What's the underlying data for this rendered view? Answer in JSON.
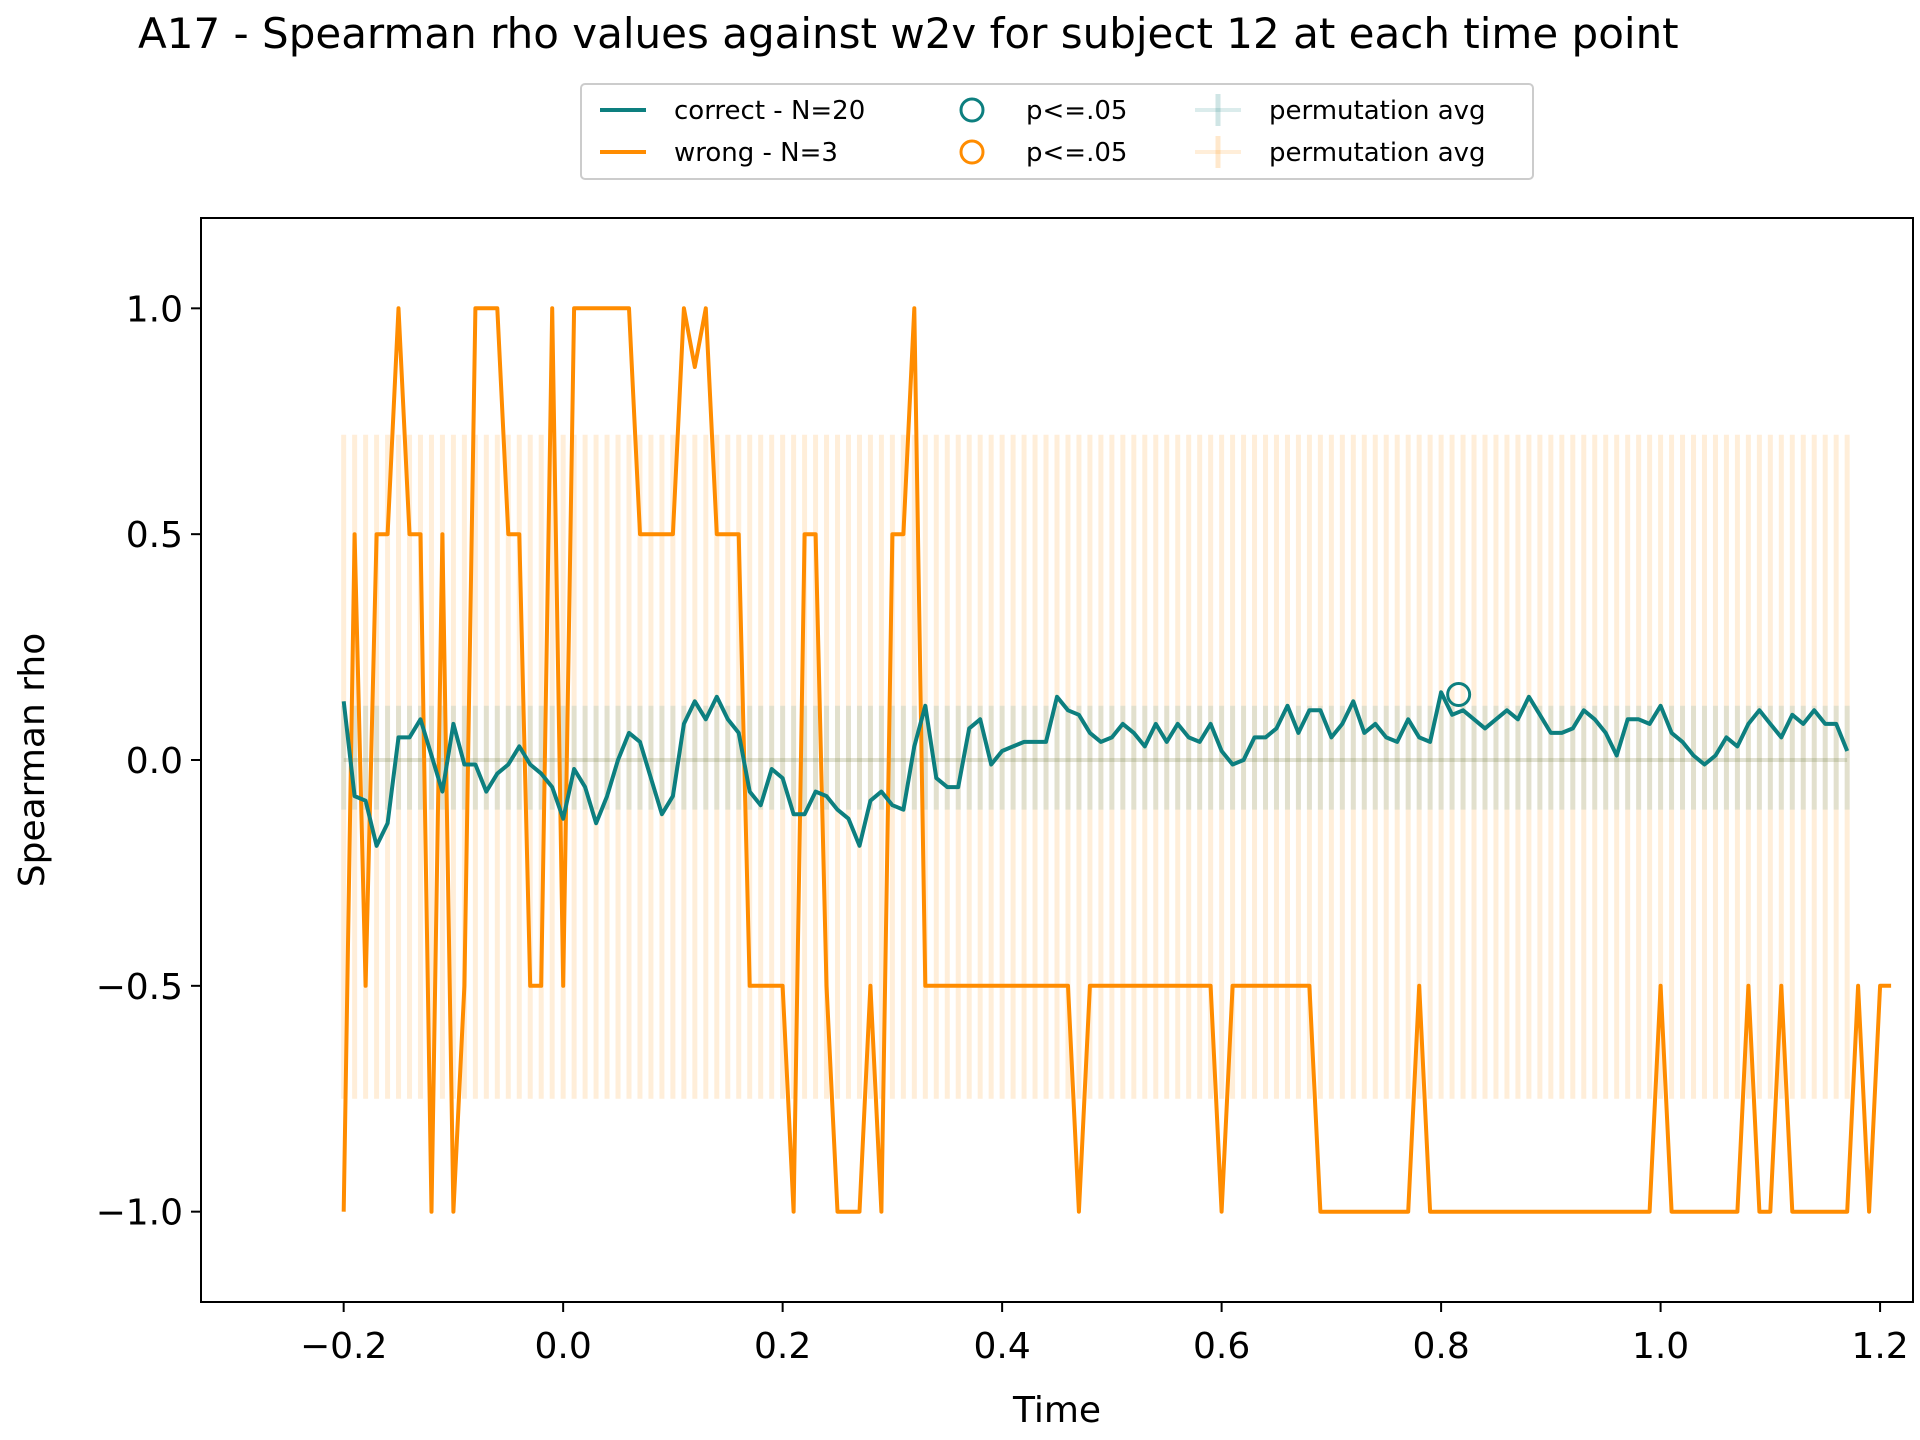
{
  "chart_data": {
    "type": "line",
    "title": "A17 - Spearman rho values against w2v for subject 12 at each time point",
    "xlabel": "Time",
    "ylabel": "Spearman rho",
    "xlim": [
      -0.33,
      1.23
    ],
    "ylim": [
      -1.2,
      1.2
    ],
    "xticks": [
      -0.2,
      0.0,
      0.2,
      0.4,
      0.6,
      0.8,
      1.0,
      1.2
    ],
    "xtick_labels": [
      "−0.2",
      "0.0",
      "0.2",
      "0.4",
      "0.6",
      "0.8",
      "1.0",
      "1.2"
    ],
    "yticks": [
      1.0,
      0.5,
      0.0,
      -0.5,
      -1.0
    ],
    "ytick_labels": [
      "1.0",
      "0.5",
      "0.0",
      "−0.5",
      "−1.0"
    ],
    "grid": false,
    "legend_placement": "top-center",
    "legend": [
      {
        "label": "correct - N=20",
        "kind": "line",
        "color": "#0d7f7f"
      },
      {
        "label": "wrong - N=3",
        "kind": "line",
        "color": "#ff8c00"
      },
      {
        "label": "p<=.05",
        "kind": "marker",
        "color": "#0d7f7f"
      },
      {
        "label": "p<=.05",
        "kind": "marker",
        "color": "#ff8c00"
      },
      {
        "label": "permutation avg",
        "kind": "errorbar",
        "color": "#0d7f7f"
      },
      {
        "label": "permutation avg",
        "kind": "errorbar",
        "color": "#ff8c00"
      }
    ],
    "x_start": -0.2,
    "x_step": 0.01,
    "series": [
      {
        "name": "correct - N=20",
        "color": "#0d7f7f",
        "values": [
          0.13,
          -0.08,
          -0.09,
          -0.19,
          -0.14,
          0.05,
          0.05,
          0.09,
          0.01,
          -0.07,
          0.08,
          -0.01,
          -0.01,
          -0.07,
          -0.03,
          -0.01,
          0.03,
          -0.01,
          -0.03,
          -0.06,
          -0.13,
          -0.02,
          -0.06,
          -0.14,
          -0.08,
          0.0,
          0.06,
          0.04,
          -0.04,
          -0.12,
          -0.08,
          0.08,
          0.13,
          0.09,
          0.14,
          0.09,
          0.06,
          -0.07,
          -0.1,
          -0.02,
          -0.04,
          -0.12,
          -0.12,
          -0.07,
          -0.08,
          -0.11,
          -0.13,
          -0.19,
          -0.09,
          -0.07,
          -0.1,
          -0.11,
          0.03,
          0.12,
          -0.04,
          -0.06,
          -0.06,
          0.07,
          0.09,
          -0.01,
          0.02,
          0.03,
          0.04,
          0.04,
          0.04,
          0.14,
          0.11,
          0.1,
          0.06,
          0.04,
          0.05,
          0.08,
          0.06,
          0.03,
          0.08,
          0.04,
          0.08,
          0.05,
          0.04,
          0.08,
          0.02,
          -0.01,
          0.0,
          0.05,
          0.05,
          0.07,
          0.12,
          0.06,
          0.11,
          0.11,
          0.05,
          0.08,
          0.13,
          0.06,
          0.08,
          0.05,
          0.04,
          0.09,
          0.05,
          0.04,
          0.15,
          0.1,
          0.11,
          0.09,
          0.07,
          0.09,
          0.11,
          0.09,
          0.14,
          0.1,
          0.06,
          0.06,
          0.07,
          0.11,
          0.09,
          0.06,
          0.01,
          0.09,
          0.09,
          0.08,
          0.12,
          0.06,
          0.04,
          0.01,
          -0.01,
          0.01,
          0.05,
          0.03,
          0.08,
          0.11,
          0.08,
          0.05,
          0.1,
          0.08,
          0.11,
          0.08,
          0.08,
          0.02
        ],
        "significant": [
          {
            "x": 0.816,
            "y": 0.145
          }
        ]
      },
      {
        "name": "wrong - N=3",
        "color": "#ff8c00",
        "values": [
          -1.0,
          0.5,
          -0.5,
          0.5,
          0.5,
          1.0,
          0.5,
          0.5,
          -1.0,
          0.5,
          -1.0,
          -0.5,
          1.0,
          1.0,
          1.0,
          0.5,
          0.5,
          -0.5,
          -0.5,
          1.0,
          -0.5,
          1.0,
          1.0,
          1.0,
          1.0,
          1.0,
          1.0,
          0.5,
          0.5,
          0.5,
          0.5,
          1.0,
          0.87,
          1.0,
          0.5,
          0.5,
          0.5,
          -0.5,
          -0.5,
          -0.5,
          -0.5,
          -1.0,
          0.5,
          0.5,
          -0.5,
          -1.0,
          -1.0,
          -1.0,
          -0.5,
          -1.0,
          0.5,
          0.5,
          1.0,
          -0.5,
          -0.5,
          -0.5,
          -0.5,
          -0.5,
          -0.5,
          -0.5,
          -0.5,
          -0.5,
          -0.5,
          -0.5,
          -0.5,
          -0.5,
          -0.5,
          -1.0,
          -0.5,
          -0.5,
          -0.5,
          -0.5,
          -0.5,
          -0.5,
          -0.5,
          -0.5,
          -0.5,
          -0.5,
          -0.5,
          -0.5,
          -1.0,
          -0.5,
          -0.5,
          -0.5,
          -0.5,
          -0.5,
          -0.5,
          -0.5,
          -0.5,
          -1.0,
          -1.0,
          -1.0,
          -1.0,
          -1.0,
          -1.0,
          -1.0,
          -1.0,
          -1.0,
          -0.5,
          -1.0,
          -1.0,
          -1.0,
          -1.0,
          -1.0,
          -1.0,
          -1.0,
          -1.0,
          -1.0,
          -1.0,
          -1.0,
          -1.0,
          -1.0,
          -1.0,
          -1.0,
          -1.0,
          -1.0,
          -1.0,
          -1.0,
          -1.0,
          -1.0,
          -0.5,
          -1.0,
          -1.0,
          -1.0,
          -1.0,
          -1.0,
          -1.0,
          -1.0,
          -0.5,
          -1.0,
          -1.0,
          -0.5,
          -1.0,
          -1.0,
          -1.0,
          -1.0,
          -1.0,
          -1.0,
          -0.5,
          -1.0,
          -0.5,
          -0.5
        ],
        "significant": []
      }
    ],
    "permutation": [
      {
        "name": "permutation avg",
        "color": "#0d7f7f",
        "center": 0.0,
        "low": -0.11,
        "high": 0.12
      },
      {
        "name": "permutation avg",
        "color": "#ff8c00",
        "center": 0.0,
        "low": -0.75,
        "high": 0.72
      }
    ]
  }
}
